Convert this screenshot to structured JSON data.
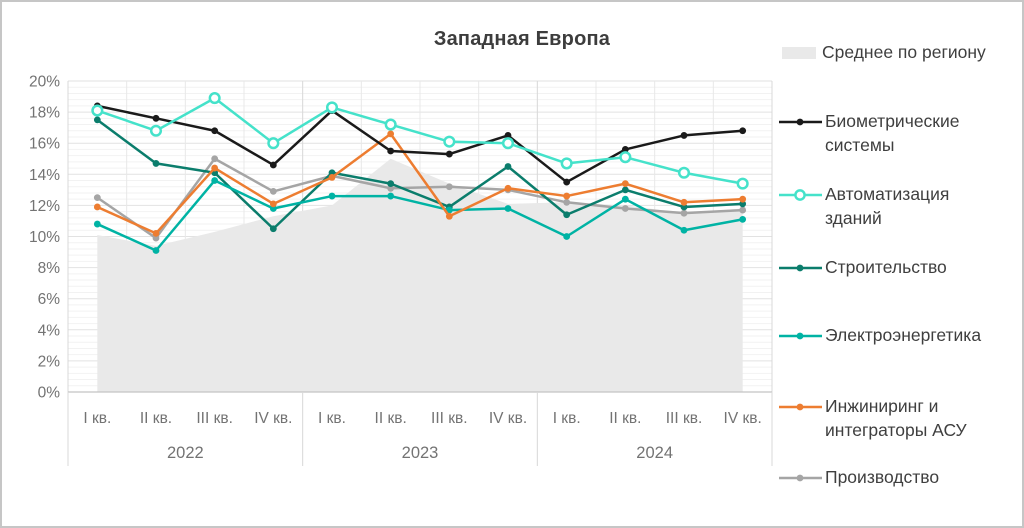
{
  "title": "Западная Европа",
  "chart_data": {
    "type": "line",
    "title": "Западная Европа",
    "ylim": [
      0,
      20
    ],
    "grid": "on",
    "legend_position": "right",
    "y_ticks": [
      "20%",
      "18%",
      "16%",
      "14%",
      "12%",
      "10%",
      "8%",
      "6%",
      "4%",
      "2%",
      "0%"
    ],
    "quarter_labels": [
      "I кв.",
      "II кв.",
      "III кв.",
      "IV кв."
    ],
    "years": [
      "2022",
      "2023",
      "2024"
    ],
    "categories": [
      "I кв. 2022",
      "II кв. 2022",
      "III кв. 2022",
      "IV кв. 2022",
      "I кв. 2023",
      "II кв. 2023",
      "III кв. 2023",
      "IV кв. 2023",
      "I кв. 2024",
      "II кв. 2024",
      "III кв. 2024",
      "IV кв. 2024"
    ],
    "area_series": {
      "name": "Среднее по региону",
      "color": "#e9e9e9",
      "values": [
        10.1,
        9.4,
        10.3,
        11.3,
        12.0,
        15.0,
        13.4,
        12.1,
        12.2,
        12.0,
        11.5,
        11.8
      ]
    },
    "series": [
      {
        "name": "Биометрические системы",
        "legend_lines": [
          "Биометрические",
          "системы"
        ],
        "color": "#1a1a1a",
        "marker": "dot",
        "values": [
          18.4,
          17.6,
          16.8,
          14.6,
          18.1,
          15.5,
          15.3,
          16.5,
          13.5,
          15.6,
          16.5,
          16.8
        ]
      },
      {
        "name": "Автоматизация зданий",
        "legend_lines": [
          "Автоматизация",
          "зданий"
        ],
        "color": "#45e2ca",
        "marker": "open-circle",
        "values": [
          18.1,
          16.8,
          18.9,
          16.0,
          18.3,
          17.2,
          16.1,
          16.0,
          14.7,
          15.1,
          14.1,
          13.4
        ]
      },
      {
        "name": "Строительство",
        "legend_lines": [
          "Строительство"
        ],
        "color": "#0b7d6c",
        "marker": "dot",
        "values": [
          17.5,
          14.7,
          14.1,
          10.5,
          14.1,
          13.4,
          11.9,
          14.5,
          11.4,
          13.0,
          11.9,
          12.1
        ]
      },
      {
        "name": "Электроэнергетика",
        "legend_lines": [
          "Электроэнергетика"
        ],
        "color": "#00b3a4",
        "marker": "dot",
        "values": [
          10.8,
          9.1,
          13.6,
          11.8,
          12.6,
          12.6,
          11.7,
          11.8,
          10.0,
          12.4,
          10.4,
          11.1
        ]
      },
      {
        "name": "Инжиниринг и интеграторы АСУ",
        "legend_lines": [
          "Инжиниринг и",
          "интеграторы АСУ"
        ],
        "color": "#ed7d31",
        "marker": "dot",
        "values": [
          11.9,
          10.2,
          14.4,
          12.1,
          13.8,
          16.6,
          11.3,
          13.1,
          12.6,
          13.4,
          12.2,
          12.4
        ]
      },
      {
        "name": "Производство",
        "legend_lines": [
          "Производство"
        ],
        "color": "#a5a5a5",
        "marker": "dot",
        "values": [
          12.5,
          9.9,
          15.0,
          12.9,
          13.9,
          13.1,
          13.2,
          13.0,
          12.2,
          11.8,
          11.5,
          11.7
        ]
      }
    ]
  },
  "colors": {
    "axis_text": "#737373",
    "grid_minor": "#f2f2f2",
    "grid_major": "#e2e2e2",
    "grid_vertical": "#e8e8e8",
    "grid_year": "#d8d8d8",
    "axis_line": "#c4c4c4"
  }
}
